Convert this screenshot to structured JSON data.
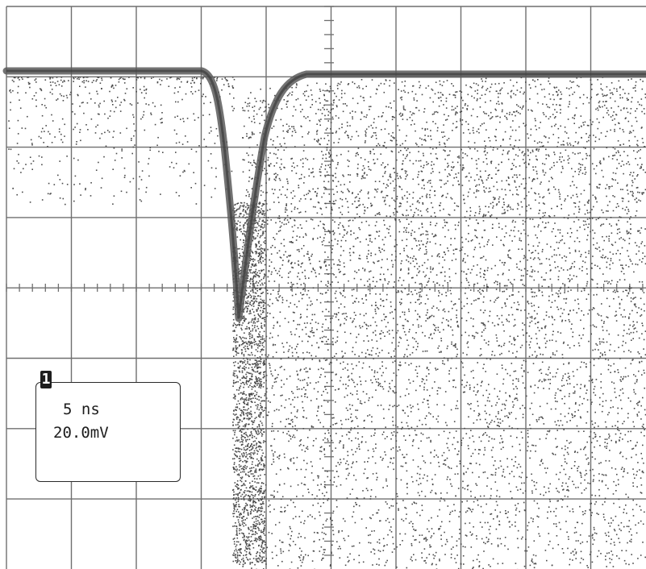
{
  "display": {
    "colors": {
      "grid": "#6f6f6f",
      "trace": "#5a5a5a",
      "dots": "#4a4a4a",
      "background": "#ffffff"
    },
    "divisions": {
      "horizontal": 10,
      "vertical": 8
    }
  },
  "channel_label": {
    "channel_number": "1",
    "timebase": "5 ns",
    "volts_per_div": "20.0mV"
  }
}
